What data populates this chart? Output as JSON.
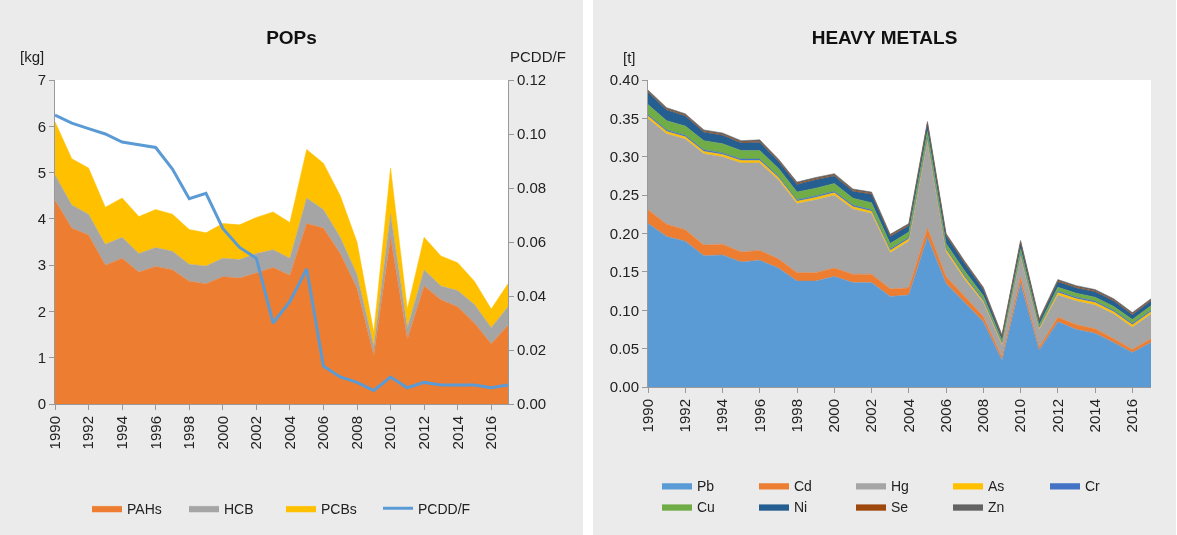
{
  "chart_data": [
    {
      "type": "area",
      "title": "POPs",
      "ylabel": "[kg]",
      "y2label": "PCDD/F",
      "stacked": true,
      "legend": "bottom",
      "grid": false,
      "x": [
        1990,
        1991,
        1992,
        1993,
        1994,
        1995,
        1996,
        1997,
        1998,
        1999,
        2000,
        2001,
        2002,
        2003,
        2004,
        2005,
        2006,
        2007,
        2008,
        2009,
        2010,
        2011,
        2012,
        2013,
        2014,
        2015,
        2016,
        2017
      ],
      "xlim": [
        1990,
        2017
      ],
      "xticks": [
        1990,
        1992,
        1994,
        1996,
        1998,
        2000,
        2002,
        2004,
        2006,
        2008,
        2010,
        2012,
        2014,
        2016
      ],
      "ylim": [
        0,
        7
      ],
      "yticks": [
        0,
        1,
        2,
        3,
        4,
        5,
        6,
        7
      ],
      "y2lim": [
        0,
        0.12
      ],
      "y2ticks": [
        {
          "value": 0,
          "label": "0.00"
        },
        {
          "value": 0.02,
          "label": "0.02"
        },
        {
          "value": 0.04,
          "label": "0.04"
        },
        {
          "value": 0.06,
          "label": "0.06"
        },
        {
          "value": 0.08,
          "label": "0.08"
        },
        {
          "value": 0.1,
          "label": "0.10"
        },
        {
          "value": 0.12,
          "label": "0.12"
        }
      ],
      "series": [
        {
          "name": "PAHs",
          "color": "#ed7d31",
          "values": [
            4.4,
            3.8,
            3.65,
            3.0,
            3.15,
            2.85,
            2.97,
            2.9,
            2.65,
            2.6,
            2.75,
            2.72,
            2.83,
            2.95,
            2.78,
            3.9,
            3.8,
            3.25,
            2.5,
            1.05,
            3.6,
            1.4,
            2.55,
            2.25,
            2.1,
            1.75,
            1.3,
            1.7
          ]
        },
        {
          "name": "HCB",
          "color": "#a5a5a5",
          "values": [
            0.55,
            0.5,
            0.45,
            0.45,
            0.45,
            0.4,
            0.41,
            0.4,
            0.37,
            0.38,
            0.4,
            0.4,
            0.42,
            0.38,
            0.37,
            0.55,
            0.4,
            0.35,
            0.3,
            0.2,
            0.5,
            0.25,
            0.35,
            0.3,
            0.35,
            0.4,
            0.35,
            0.4
          ]
        },
        {
          "name": "PCBs",
          "color": "#ffc000",
          "values": [
            1.15,
            1.0,
            1.0,
            0.8,
            0.85,
            0.8,
            0.82,
            0.8,
            0.75,
            0.72,
            0.75,
            0.75,
            0.78,
            0.82,
            0.77,
            1.05,
            1.0,
            0.9,
            0.7,
            0.3,
            1.0,
            0.4,
            0.7,
            0.65,
            0.6,
            0.5,
            0.4,
            0.5
          ]
        },
        {
          "name": "PCDD/F",
          "type": "line",
          "axis": "y2",
          "color": "#5b9bd5",
          "values": [
            0.107,
            0.104,
            0.102,
            0.1,
            0.097,
            0.096,
            0.095,
            0.087,
            0.076,
            0.078,
            0.065,
            0.058,
            0.054,
            0.03,
            0.038,
            0.05,
            0.014,
            0.01,
            0.008,
            0.005,
            0.01,
            0.006,
            0.008,
            0.007,
            0.007,
            0.007,
            0.006,
            0.007
          ]
        }
      ]
    },
    {
      "type": "area",
      "title": "HEAVY METALS",
      "ylabel": "[t]",
      "stacked": true,
      "legend": "bottom",
      "grid": false,
      "x": [
        1990,
        1991,
        1992,
        1993,
        1994,
        1995,
        1996,
        1997,
        1998,
        1999,
        2000,
        2001,
        2002,
        2003,
        2004,
        2005,
        2006,
        2007,
        2008,
        2009,
        2010,
        2011,
        2012,
        2013,
        2014,
        2015,
        2016,
        2017
      ],
      "xlim": [
        1990,
        2017
      ],
      "xticks": [
        1990,
        1992,
        1994,
        1996,
        1998,
        2000,
        2002,
        2004,
        2006,
        2008,
        2010,
        2012,
        2014,
        2016
      ],
      "ylim": [
        0,
        0.4
      ],
      "yticks": [
        {
          "value": 0,
          "label": "0.00"
        },
        {
          "value": 0.05,
          "label": "0.05"
        },
        {
          "value": 0.1,
          "label": "0.10"
        },
        {
          "value": 0.15,
          "label": "0.15"
        },
        {
          "value": 0.2,
          "label": "0.20"
        },
        {
          "value": 0.25,
          "label": "0.25"
        },
        {
          "value": 0.3,
          "label": "0.30"
        },
        {
          "value": 0.35,
          "label": "0.35"
        },
        {
          "value": 0.4,
          "label": "0.40"
        }
      ],
      "series": [
        {
          "name": "Pb",
          "color": "#5b9bd5",
          "values": [
            0.213,
            0.196,
            0.19,
            0.171,
            0.172,
            0.163,
            0.165,
            0.155,
            0.138,
            0.138,
            0.144,
            0.136,
            0.136,
            0.118,
            0.12,
            0.195,
            0.135,
            0.11,
            0.085,
            0.035,
            0.135,
            0.048,
            0.085,
            0.075,
            0.07,
            0.058,
            0.045,
            0.058
          ]
        },
        {
          "name": "Cd",
          "color": "#ed7d31",
          "values": [
            0.018,
            0.016,
            0.015,
            0.014,
            0.014,
            0.013,
            0.013,
            0.012,
            0.011,
            0.011,
            0.011,
            0.011,
            0.011,
            0.01,
            0.009,
            0.012,
            0.009,
            0.008,
            0.007,
            0.004,
            0.008,
            0.004,
            0.006,
            0.006,
            0.006,
            0.005,
            0.004,
            0.005
          ]
        },
        {
          "name": "Hg",
          "color": "#a5a5a5",
          "values": [
            0.119,
            0.118,
            0.118,
            0.119,
            0.114,
            0.116,
            0.114,
            0.103,
            0.09,
            0.095,
            0.095,
            0.085,
            0.079,
            0.047,
            0.061,
            0.113,
            0.032,
            0.022,
            0.018,
            0.016,
            0.027,
            0.023,
            0.029,
            0.031,
            0.031,
            0.032,
            0.029,
            0.032
          ]
        },
        {
          "name": "As",
          "color": "#ffc000",
          "values": [
            0.003,
            0.003,
            0.003,
            0.003,
            0.003,
            0.003,
            0.003,
            0.003,
            0.003,
            0.003,
            0.003,
            0.003,
            0.003,
            0.003,
            0.003,
            0.003,
            0.003,
            0.003,
            0.002,
            0.002,
            0.002,
            0.002,
            0.003,
            0.003,
            0.003,
            0.003,
            0.003,
            0.003
          ]
        },
        {
          "name": "Cr",
          "color": "#4472c4",
          "values": [
            0.002,
            0.002,
            0.002,
            0.002,
            0.002,
            0.002,
            0.002,
            0.002,
            0.002,
            0.002,
            0.002,
            0.002,
            0.002,
            0.002,
            0.002,
            0.002,
            0.002,
            0.002,
            0.002,
            0.001,
            0.002,
            0.001,
            0.002,
            0.002,
            0.002,
            0.002,
            0.002,
            0.002
          ]
        },
        {
          "name": "Cu",
          "color": "#70ad47",
          "values": [
            0.013,
            0.012,
            0.012,
            0.012,
            0.012,
            0.011,
            0.011,
            0.01,
            0.01,
            0.01,
            0.01,
            0.009,
            0.009,
            0.007,
            0.007,
            0.008,
            0.006,
            0.006,
            0.005,
            0.003,
            0.006,
            0.003,
            0.005,
            0.005,
            0.005,
            0.005,
            0.005,
            0.006
          ]
        },
        {
          "name": "Ni",
          "color": "#255e91",
          "values": [
            0.016,
            0.014,
            0.013,
            0.011,
            0.011,
            0.01,
            0.011,
            0.009,
            0.01,
            0.011,
            0.01,
            0.009,
            0.011,
            0.009,
            0.008,
            0.01,
            0.01,
            0.01,
            0.008,
            0.004,
            0.008,
            0.005,
            0.007,
            0.007,
            0.007,
            0.007,
            0.006,
            0.006
          ]
        },
        {
          "name": "Se",
          "color": "#9e480e",
          "values": [
            0.001,
            0.001,
            0.001,
            0.001,
            0.001,
            0.001,
            0.001,
            0.001,
            0.001,
            0.001,
            0.001,
            0.001,
            0.001,
            0.001,
            0.001,
            0.001,
            0.001,
            0.001,
            0.001,
            0.001,
            0.001,
            0.001,
            0.001,
            0.001,
            0.001,
            0.001,
            0.001,
            0.001
          ]
        },
        {
          "name": "Zn",
          "color": "#636363",
          "values": [
            0.002,
            0.002,
            0.002,
            0.002,
            0.002,
            0.002,
            0.002,
            0.002,
            0.002,
            0.002,
            0.002,
            0.002,
            0.002,
            0.002,
            0.002,
            0.002,
            0.002,
            0.002,
            0.002,
            0.002,
            0.002,
            0.002,
            0.002,
            0.002,
            0.002,
            0.002,
            0.002,
            0.002
          ]
        }
      ]
    }
  ]
}
